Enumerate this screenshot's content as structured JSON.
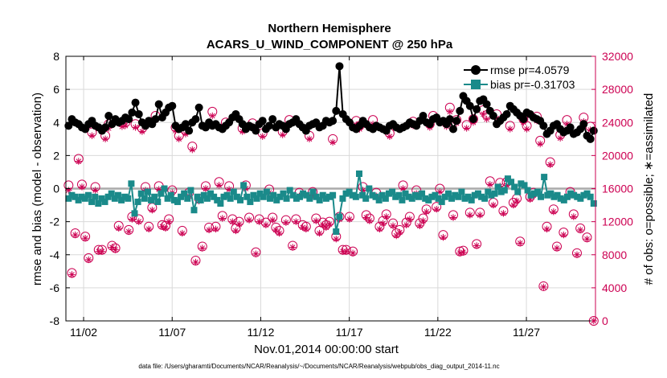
{
  "chart_data": {
    "type": "line",
    "title": [
      "Northern Hemisphere",
      "ACARS_U_WIND_COMPONENT @ 250 hPa"
    ],
    "xlabel": "Nov.01,2014 00:00:00 start",
    "ylabel_left": "rmse and bias (model - observation)",
    "ylabel_right": "# of obs: o=possible; ∗=assimilated",
    "x_tick_labels": [
      "11/02",
      "11/07",
      "11/12",
      "11/17",
      "11/22",
      "11/27"
    ],
    "x_tick_days": [
      2,
      7,
      12,
      17,
      22,
      27
    ],
    "xlim": [
      1.0,
      30.9
    ],
    "ylim_left": [
      -8,
      8
    ],
    "y_ticks_left": [
      -8,
      -6,
      -4,
      -2,
      0,
      2,
      4,
      6,
      8
    ],
    "ylim_right": [
      0,
      32000
    ],
    "y_ticks_right": [
      0,
      4000,
      8000,
      12000,
      16000,
      20000,
      24000,
      28000,
      32000
    ],
    "y_tick_labels_right": [
      "0",
      "4000",
      "8000",
      "12000",
      "16000",
      "20000",
      "24000",
      "28000",
      "32000"
    ],
    "grid": true,
    "legend_position": "top-right",
    "colors": {
      "rmse": "#000000",
      "bias": "#1a8a8a",
      "obs": "#cc0052",
      "zero_line": "#aaaaaa",
      "grid": "#d9d9d9"
    },
    "series": [
      {
        "name": "rmse pr=4.0579",
        "marker": "circle",
        "y": [
          3.8,
          4.2,
          4.0,
          3.9,
          3.7,
          3.6,
          3.9,
          4.1,
          3.8,
          3.7,
          3.5,
          3.7,
          4.4,
          3.9,
          4.2,
          4.0,
          4.1,
          4.3,
          4.2,
          4.6,
          5.2,
          4.5,
          4.0,
          3.8,
          4.1,
          3.9,
          4.2,
          5.1,
          4.3,
          4.6,
          4.9,
          5.0,
          3.8,
          3.6,
          3.7,
          3.9,
          3.5,
          4.0,
          4.2,
          4.9,
          3.8,
          3.7,
          4.0,
          3.8,
          3.9,
          3.7,
          3.6,
          3.8,
          4.0,
          4.3,
          4.5,
          4.2,
          3.9,
          3.6,
          3.8,
          3.7,
          3.5,
          3.9,
          4.1,
          3.6,
          3.8,
          4.2,
          3.7,
          3.9,
          3.8,
          3.6,
          3.9,
          4.0,
          4.2,
          3.9,
          3.7,
          3.5,
          3.8,
          3.9,
          4.0,
          3.7,
          3.8,
          4.1,
          4.0,
          4.1,
          4.7,
          7.4,
          4.5,
          4.2,
          4.0,
          3.7,
          3.6,
          3.8,
          4.1,
          3.9,
          3.7,
          3.6,
          3.8,
          3.7,
          3.6,
          3.5,
          3.8,
          3.9,
          3.7,
          3.6,
          3.7,
          3.8,
          4.0,
          3.9,
          3.8,
          4.1,
          4.4,
          4.0,
          3.9,
          4.2,
          4.3,
          4.0,
          4.1,
          3.9,
          4.2,
          3.6,
          4.1,
          4.7,
          5.6,
          5.3,
          5.0,
          4.2,
          4.8,
          5.3,
          5.4,
          5.1,
          4.7,
          4.4,
          3.9,
          4.1,
          4.3,
          4.5,
          5.0,
          4.8,
          4.6,
          4.4,
          4.2,
          4.6,
          4.5,
          4.3,
          4.2,
          4.1,
          3.8,
          3.3,
          3.5,
          3.8,
          3.9,
          3.6,
          3.4,
          3.5,
          3.7,
          3.3,
          3.4,
          3.6,
          3.9,
          3.2,
          3.0,
          3.5
        ]
      },
      {
        "name": "bias pr=-0.31703",
        "marker": "square",
        "y": [
          -0.6,
          -0.4,
          -0.5,
          -0.7,
          -0.5,
          -0.6,
          -0.4,
          -0.8,
          -0.5,
          -0.9,
          -0.6,
          -0.8,
          -0.5,
          -0.3,
          -0.6,
          -0.4,
          -0.7,
          -0.5,
          -0.6,
          0.3,
          -1.5,
          -0.8,
          -0.3,
          -0.6,
          -0.2,
          -0.7,
          -0.5,
          -0.8,
          -0.3,
          0.0,
          -0.6,
          -0.4,
          -0.7,
          -0.8,
          -0.5,
          -0.3,
          -0.6,
          -0.1,
          -1.3,
          -0.5,
          -0.7,
          -0.4,
          -0.6,
          -0.3,
          -0.5,
          -0.7,
          -0.9,
          -0.5,
          -0.4,
          -0.6,
          -0.2,
          -0.5,
          -0.7,
          0.2,
          -0.5,
          -0.8,
          -0.4,
          -0.6,
          -0.3,
          -0.5,
          -0.2,
          -0.6,
          -0.4,
          -0.7,
          -0.5,
          -0.3,
          -0.6,
          -0.1,
          -0.4,
          -0.6,
          -0.5,
          -0.3,
          -0.4,
          -0.6,
          -0.2,
          -0.5,
          -0.7,
          -0.4,
          -0.6,
          -0.5,
          -0.4,
          -2.6,
          -1.7,
          -0.6,
          -0.3,
          -0.2,
          -0.4,
          -0.5,
          0.9,
          -0.4,
          -0.6,
          0.0,
          -0.4,
          -0.5,
          -0.7,
          -0.4,
          -0.6,
          -0.3,
          -0.2,
          -0.5,
          -0.4,
          -0.7,
          -0.3,
          -0.5,
          -0.6,
          -0.4,
          -0.5,
          -0.3,
          -0.6,
          -0.7,
          -0.5,
          -0.4,
          -0.6,
          -0.8,
          -0.5,
          -0.3,
          -0.6,
          -0.4,
          -0.5,
          -0.2,
          -0.6,
          -0.5,
          -0.7,
          -0.4,
          -0.3,
          -0.5,
          -0.6,
          -0.2,
          -0.4,
          -0.3,
          0.1,
          -0.2,
          -0.1,
          0.6,
          0.4,
          0.1,
          -0.2,
          0.3,
          0.2,
          -0.1,
          -0.4,
          -0.3,
          -0.2,
          -0.5,
          0.7,
          -0.4,
          -0.3,
          -0.5,
          -0.4,
          -0.6,
          -0.7,
          -0.5,
          -0.3,
          -0.4,
          -0.5,
          -0.6,
          -0.4,
          -0.3,
          -0.5,
          -0.9
        ]
      },
      {
        "name": "# obs possible",
        "marker": "circle-open",
        "axis": "right",
        "y": [
          16400,
          5800,
          10600,
          19600,
          16500,
          10200,
          7600,
          22800,
          16200,
          8600,
          8600,
          22400,
          23800,
          9100,
          8800,
          11500,
          24000,
          24000,
          11000,
          12600,
          23800,
          12300,
          23300,
          16200,
          11400,
          13700,
          24800,
          16300,
          11600,
          11500,
          12300,
          15800,
          23400,
          22400,
          10900,
          23000,
          15500,
          21100,
          7300,
          14800,
          9000,
          16300,
          11300,
          25300,
          11400,
          16800,
          12700,
          24000,
          16300,
          12300,
          11200,
          12000,
          23300,
          16400,
          12500,
          23900,
          8300,
          12300,
          22700,
          11900,
          15900,
          12500,
          11300,
          10900,
          22900,
          12200,
          24300,
          9100,
          12300,
          15500,
          11600,
          11400,
          22400,
          15600,
          12400,
          10900,
          11900,
          11600,
          12000,
          22000,
          10200,
          12600,
          8600,
          8600,
          12600,
          8400,
          24200,
          23600,
          16200,
          12800,
          12400,
          24300,
          15500,
          11400,
          12100,
          12900,
          22700,
          11800,
          10600,
          11000,
          16400,
          11900,
          12600,
          24100,
          15800,
          11800,
          12400,
          13500,
          23800,
          24800,
          13800,
          16000,
          10400,
          23900,
          25800,
          12800,
          24300,
          8400,
          8500,
          23700,
          13100,
          24400,
          9300,
          13100,
          25500,
          24900,
          16900,
          14300,
          25000,
          16700,
          13300,
          16800,
          23600,
          14300,
          14800,
          9600,
          24400,
          23600,
          15000,
          15500,
          24700,
          21800,
          4200,
          11400,
          19200,
          13500,
          9000,
          22500,
          10700,
          24300,
          15600,
          12900,
          8200,
          11200,
          24600,
          10100,
          23500,
          0
        ]
      },
      {
        "name": "# obs assimilated",
        "marker": "asterisk",
        "axis": "right",
        "y": [
          15800,
          5600,
          10400,
          19300,
          16200,
          10000,
          7400,
          22400,
          15800,
          8400,
          8400,
          22000,
          23300,
          8900,
          8600,
          11200,
          23500,
          23600,
          10800,
          12300,
          23400,
          12000,
          22900,
          15800,
          11100,
          13400,
          24300,
          15900,
          11400,
          11200,
          12000,
          15500,
          23000,
          22000,
          10600,
          22600,
          15100,
          20700,
          7100,
          14500,
          8800,
          16000,
          11000,
          24800,
          11100,
          16400,
          12400,
          23600,
          15900,
          12000,
          10900,
          11700,
          22900,
          16000,
          12200,
          23500,
          8100,
          12000,
          22300,
          11600,
          15500,
          12200,
          11000,
          10600,
          22500,
          11900,
          23900,
          8900,
          12000,
          15100,
          11300,
          11100,
          22000,
          15200,
          12100,
          10600,
          11600,
          11300,
          11700,
          21600,
          9900,
          12300,
          8400,
          8400,
          12300,
          8200,
          23700,
          23200,
          15800,
          12500,
          12100,
          23800,
          15100,
          11100,
          11800,
          12600,
          22300,
          11500,
          10300,
          10700,
          16000,
          11600,
          12300,
          23600,
          15400,
          11500,
          12100,
          13200,
          23400,
          24300,
          13500,
          15600,
          10100,
          23500,
          25300,
          12500,
          23900,
          8200,
          8300,
          23300,
          12800,
          24000,
          9100,
          12800,
          25000,
          24400,
          16500,
          14000,
          24500,
          16300,
          13000,
          16400,
          23200,
          14000,
          14500,
          9400,
          24000,
          23200,
          14700,
          15200,
          24200,
          21400,
          4100,
          11100,
          18900,
          13200,
          8800,
          22100,
          10400,
          23800,
          15200,
          12600,
          8000,
          11000,
          24100,
          9900,
          23100,
          0
        ]
      }
    ]
  },
  "footnote": "data file: /Users/gharamti/Documents/NCAR/Reanalysis/~/Documents/NCAR/Reanalysis/webpub/obs_diag_output_2014-11.nc"
}
